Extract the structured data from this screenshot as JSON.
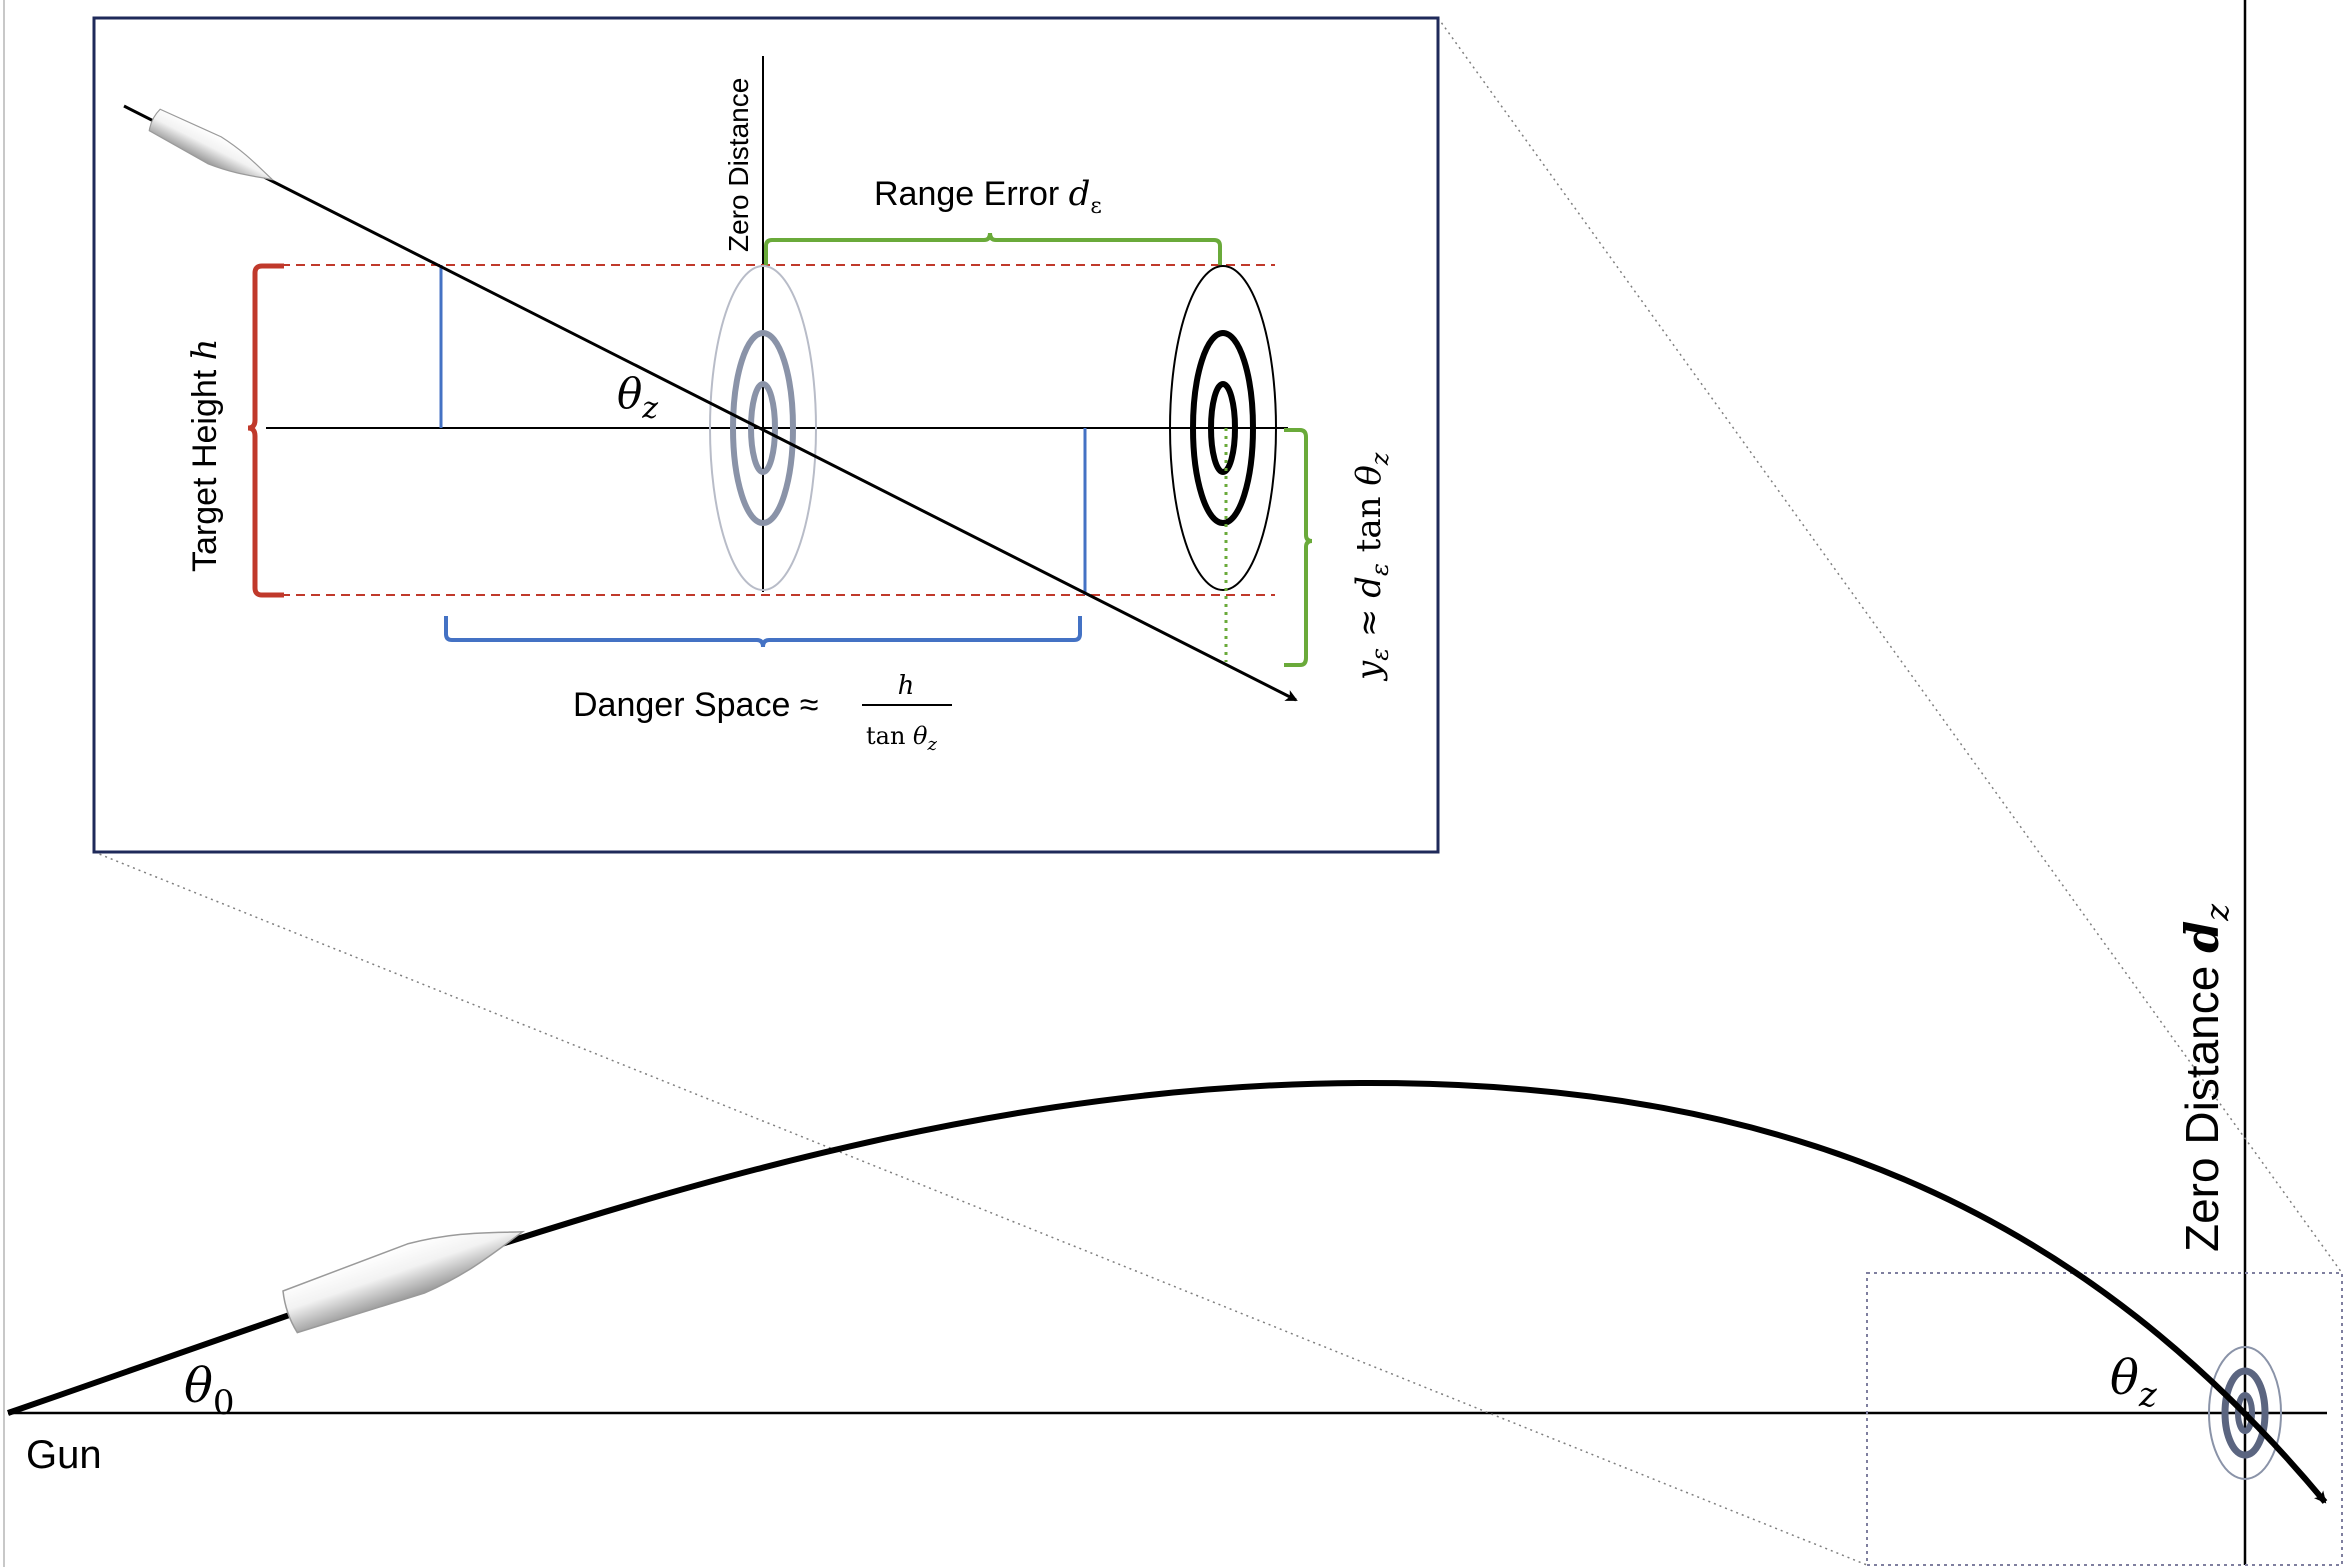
{
  "main_view": {
    "gun_label": "Gun",
    "launch_angle": {
      "symbol": "θ",
      "subscript": "0"
    },
    "impact_angle": {
      "symbol": "θ",
      "subscript": "z"
    },
    "zero_distance_label": {
      "text": "Zero Distance ",
      "symbol": "d",
      "subscript": "z"
    }
  },
  "inset": {
    "zero_distance_axis_label": "Zero Distance",
    "range_error_label": {
      "text": "Range Error ",
      "symbol": "d",
      "subscript": "ε"
    },
    "target_height_label": {
      "text": "Target  Height ",
      "symbol": "h"
    },
    "angle_label": {
      "symbol": "θ",
      "subscript": "z"
    },
    "danger_space_label": {
      "text": "Danger Space ≈",
      "numerator": "h",
      "denominator_fn": "tan ",
      "denominator_symbol": "θ",
      "denominator_subscript": "z"
    },
    "vertical_error_label": {
      "y": "y",
      "y_sub": "ε",
      "approx": " ≈ ",
      "d": "d",
      "d_sub": "ε",
      "tan": " tan ",
      "theta": "θ",
      "theta_sub": "z"
    }
  },
  "colors": {
    "trajectory": "#000000",
    "inset_border": "#1f2a5a",
    "target_height_bracket": "#c0392b",
    "dashed_limits": "#c0392b",
    "range_error_bracket": "#6aaa3a",
    "danger_space_bracket": "#4472c4",
    "danger_space_ticks": "#4472c4",
    "target_rings_faded": "#8a93a8",
    "target_rings_dark": "#000000",
    "zoom_guides": "#7f7f7f"
  }
}
